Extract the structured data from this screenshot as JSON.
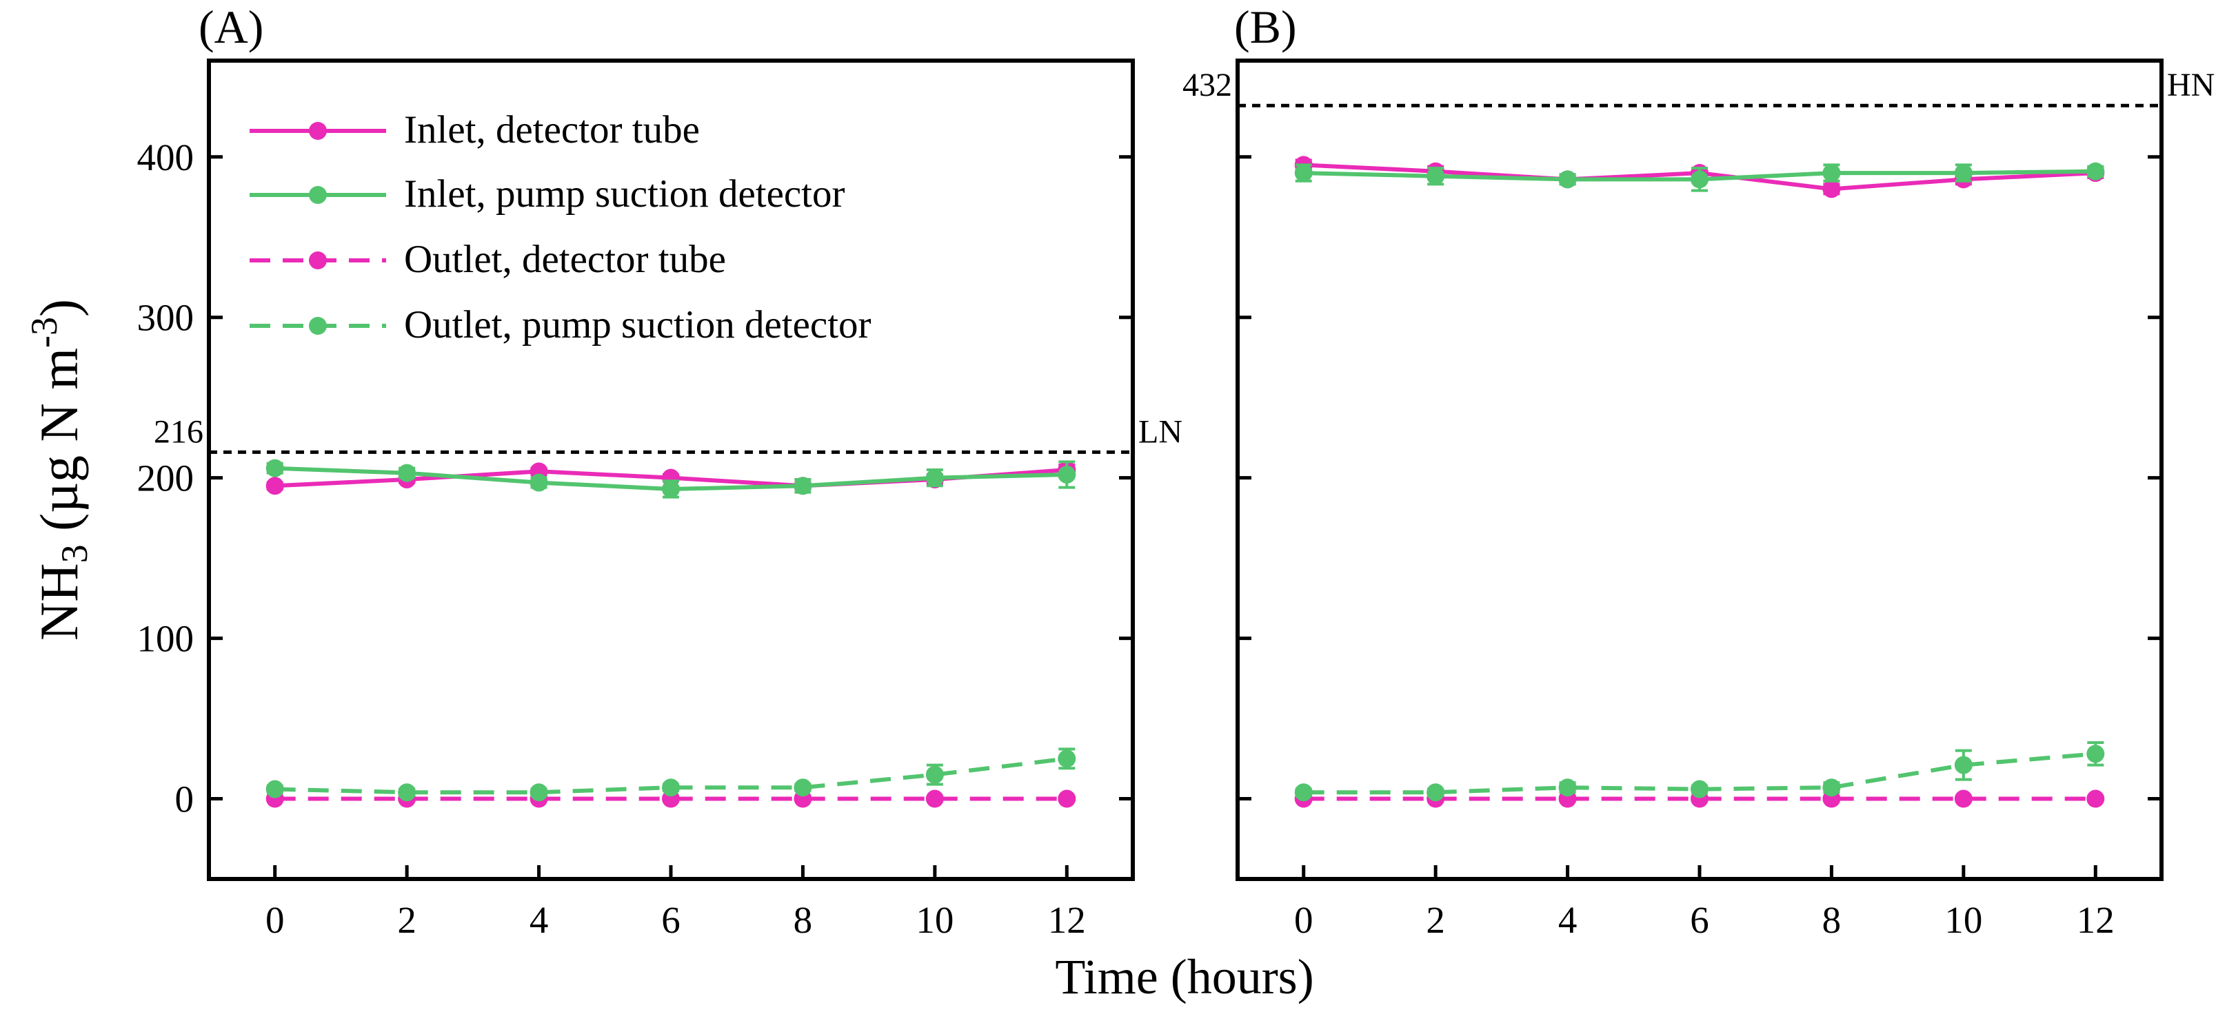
{
  "colors": {
    "tube": "#ea2bb7",
    "pump": "#52c46e",
    "axis": "#000000"
  },
  "ylabel": {
    "base": "NH",
    "sub": "3",
    "unit": " (µg N m",
    "sup": "-3",
    "close": ")"
  },
  "xlabel": "Time (hours)",
  "legend": [
    {
      "label": "Inlet, detector tube",
      "color": "#ea2bb7",
      "dashed": false
    },
    {
      "label": "Inlet, pump suction detector",
      "color": "#52c46e",
      "dashed": false
    },
    {
      "label": "Outlet, detector tube",
      "color": "#ea2bb7",
      "dashed": true
    },
    {
      "label": "Outlet, pump suction detector",
      "color": "#52c46e",
      "dashed": true
    }
  ],
  "chart_data": [
    {
      "type": "line",
      "panel": "(A)",
      "x": [
        0,
        2,
        4,
        6,
        8,
        10,
        12
      ],
      "xlim": [
        -1,
        13
      ],
      "ylim": [
        -50,
        460
      ],
      "xticks": [
        "0",
        "2",
        "4",
        "6",
        "8",
        "10",
        "12"
      ],
      "yticks": [
        "0",
        "100",
        "200",
        "300",
        "400"
      ],
      "yticks_labeled": true,
      "reference_line": {
        "value": 216,
        "value_label": "216",
        "label": "LN"
      },
      "series": [
        {
          "name": "Inlet, detector tube",
          "color": "#ea2bb7",
          "dashed": false,
          "values": [
            195,
            199,
            204,
            200,
            195,
            199,
            205
          ],
          "errors": [
            2,
            2,
            2,
            2,
            2,
            3,
            3
          ]
        },
        {
          "name": "Inlet, pump suction detector",
          "color": "#52c46e",
          "dashed": false,
          "values": [
            206,
            203,
            197,
            193,
            195,
            200,
            202
          ],
          "errors": [
            3,
            3,
            3,
            5,
            4,
            5,
            8
          ]
        },
        {
          "name": "Outlet, detector tube",
          "color": "#ea2bb7",
          "dashed": true,
          "values": [
            0,
            0,
            0,
            0,
            0,
            0,
            0
          ],
          "errors": [
            0,
            0,
            0,
            0,
            0,
            0,
            0
          ]
        },
        {
          "name": "Outlet, pump suction detector",
          "color": "#52c46e",
          "dashed": true,
          "values": [
            6,
            4,
            4,
            7,
            7,
            15,
            25
          ],
          "errors": [
            2,
            2,
            2,
            2,
            2,
            6,
            6
          ]
        }
      ]
    },
    {
      "type": "line",
      "panel": "(B)",
      "x": [
        0,
        2,
        4,
        6,
        8,
        10,
        12
      ],
      "xlim": [
        -1,
        13
      ],
      "ylim": [
        -50,
        460
      ],
      "xticks": [
        "0",
        "2",
        "4",
        "6",
        "8",
        "10",
        "12"
      ],
      "yticks": [
        "0",
        "100",
        "200",
        "300",
        "400"
      ],
      "yticks_labeled": false,
      "reference_line": {
        "value": 432,
        "value_label": "432",
        "label": "HN"
      },
      "series": [
        {
          "name": "Inlet, detector tube",
          "color": "#ea2bb7",
          "dashed": false,
          "values": [
            395,
            391,
            386,
            390,
            380,
            386,
            390
          ],
          "errors": [
            3,
            3,
            3,
            3,
            3,
            3,
            3
          ]
        },
        {
          "name": "Inlet, pump suction detector",
          "color": "#52c46e",
          "dashed": false,
          "values": [
            390,
            388,
            386,
            386,
            390,
            390,
            391
          ],
          "errors": [
            5,
            5,
            3,
            7,
            5,
            5,
            3
          ]
        },
        {
          "name": "Outlet, detector tube",
          "color": "#ea2bb7",
          "dashed": true,
          "values": [
            0,
            0,
            0,
            0,
            0,
            0,
            0
          ],
          "errors": [
            0,
            0,
            0,
            0,
            0,
            0,
            0
          ]
        },
        {
          "name": "Outlet, pump suction detector",
          "color": "#52c46e",
          "dashed": true,
          "values": [
            4,
            4,
            7,
            6,
            7,
            21,
            28
          ],
          "errors": [
            2,
            2,
            3,
            2,
            3,
            9,
            7
          ]
        }
      ]
    }
  ]
}
